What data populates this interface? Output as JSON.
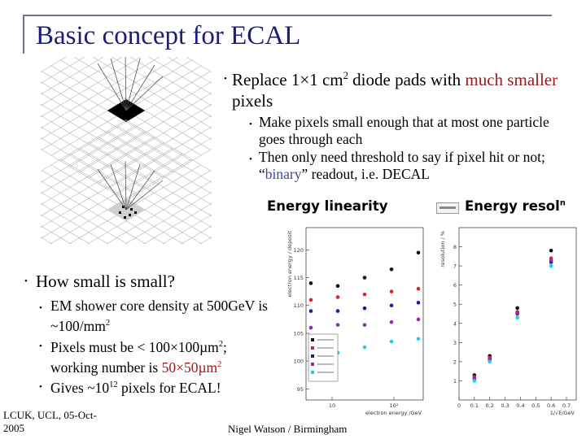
{
  "title": "Basic concept for ECAL",
  "main_bullet": {
    "pre": "Replace 1×1 cm",
    "sup": "2",
    "mid": " diode pads with ",
    "highlight": "much smaller",
    "post": " pixels"
  },
  "sub_bullets": [
    {
      "text": "Make pixels small enough that at most one particle goes through each"
    },
    {
      "pre": "Then only need threshold to say if pixel hit or not; “",
      "highlight": "binary",
      "post": "” readout, i.e. DECAL"
    }
  ],
  "captions": {
    "linearity": "Energy linearity",
    "resolution": "Energy resol",
    "resolution_sup": "n"
  },
  "question": "How small is small?",
  "details": [
    {
      "pre": "EM shower core density at 500GeV is ~100/mm",
      "sup": "2"
    },
    {
      "pre": "Pixels must be < 100×100µm",
      "sup": "2",
      "mid": "; working number is ",
      "highlight": "50×50µm",
      "highlight_sup": "2"
    },
    {
      "pre": "Gives ~10",
      "sup": "12",
      "post": " pixels for ECAL!"
    }
  ],
  "footer": {
    "left": "LCUK, UCL, 05-Oct-2005",
    "center": "Nigel Watson / Birmingham"
  },
  "colors": {
    "title": "#1c1c7c",
    "highlight_red": "#a01818",
    "highlight_blue": "#4545a0"
  },
  "chart_data": [
    {
      "type": "scatter",
      "title": "",
      "xlabel": "electron energy /GeV",
      "ylabel": "electron energy / deposit",
      "ylim": [
        93,
        124
      ],
      "yticks": [
        "95",
        "100",
        "105",
        "110",
        "115",
        "120"
      ],
      "xticks": [
        "10",
        "10²"
      ],
      "series": [
        {
          "color": "#111111",
          "points": [
            [
              1,
              114
            ],
            [
              2,
              113.5
            ],
            [
              3,
              115
            ],
            [
              4,
              116.5
            ],
            [
              5,
              119.5
            ]
          ]
        },
        {
          "color": "#e0202a",
          "points": [
            [
              1,
              111
            ],
            [
              2,
              111.5
            ],
            [
              3,
              112
            ],
            [
              4,
              112.5
            ],
            [
              5,
              113
            ]
          ]
        },
        {
          "color": "#1c1c9a",
          "points": [
            [
              1,
              109
            ],
            [
              2,
              109
            ],
            [
              3,
              109.5
            ],
            [
              4,
              110
            ],
            [
              5,
              110.5
            ]
          ]
        },
        {
          "color": "#a020c0",
          "points": [
            [
              1,
              106
            ],
            [
              2,
              106.5
            ],
            [
              3,
              106.5
            ],
            [
              4,
              107
            ],
            [
              5,
              107.5
            ]
          ]
        },
        {
          "color": "#20d0e0",
          "points": [
            [
              1,
              100.5
            ],
            [
              2,
              101.5
            ],
            [
              3,
              102.5
            ],
            [
              4,
              103.5
            ],
            [
              5,
              104
            ]
          ]
        }
      ]
    },
    {
      "type": "scatter",
      "title": "",
      "xlabel": "1/√E/GeV",
      "ylabel": "resolution / %",
      "ylim": [
        0,
        9
      ],
      "yticks": [
        "1",
        "2",
        "3",
        "4",
        "5",
        "6",
        "7",
        "8"
      ],
      "xticks": [
        "0",
        "0.1",
        "0.2",
        "0.3",
        "0.4",
        "0.5",
        "0.6",
        "0.7"
      ],
      "series": [
        {
          "color": "#111111",
          "points": [
            [
              0.1,
              1.3
            ],
            [
              0.2,
              2.3
            ],
            [
              0.38,
              4.8
            ],
            [
              0.6,
              7.8
            ]
          ]
        },
        {
          "color": "#e0202a",
          "points": [
            [
              0.1,
              1.2
            ],
            [
              0.2,
              2.2
            ],
            [
              0.38,
              4.6
            ],
            [
              0.6,
              7.4
            ]
          ]
        },
        {
          "color": "#1c1c9a",
          "points": [
            [
              0.1,
              1.1
            ],
            [
              0.2,
              2.1
            ],
            [
              0.38,
              4.5
            ],
            [
              0.6,
              7.2
            ]
          ]
        },
        {
          "color": "#a020c0",
          "points": [
            [
              0.1,
              1.15
            ],
            [
              0.2,
              2.15
            ],
            [
              0.38,
              4.55
            ],
            [
              0.6,
              7.3
            ]
          ]
        },
        {
          "color": "#20d0e0",
          "points": [
            [
              0.1,
              1.0
            ],
            [
              0.2,
              2.0
            ],
            [
              0.38,
              4.3
            ],
            [
              0.6,
              7.0
            ]
          ]
        }
      ]
    }
  ]
}
